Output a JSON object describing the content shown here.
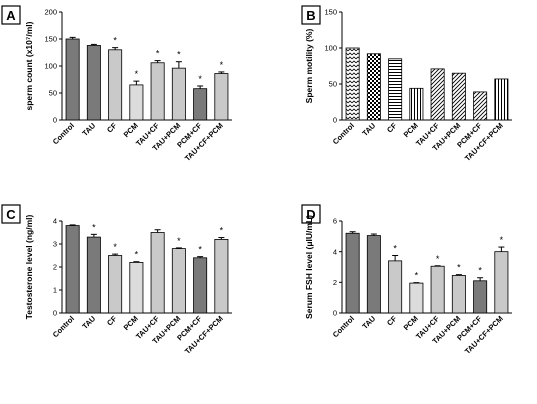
{
  "categories": [
    "Control",
    "TAU",
    "CF",
    "PCM",
    "TAU+CF",
    "TAU+PCM",
    "PCM+CF",
    "TAU+CF+PCM"
  ],
  "colors": {
    "dark": "#7a7a7a",
    "mid": "#a6a6a6",
    "light": "#c9c9c9",
    "lighter": "#dcdcdc",
    "outline": "#000000"
  },
  "chart_data": [
    {
      "panel": "A",
      "type": "bar",
      "ylabel": "sperm count (x10⁷/ml)",
      "ylim": [
        0,
        200
      ],
      "yticks": [
        0,
        50,
        100,
        150,
        200
      ],
      "values": [
        150,
        138,
        130,
        65,
        106,
        96,
        58,
        86
      ],
      "errors": [
        3,
        2,
        4,
        7,
        4,
        12,
        5,
        3
      ],
      "significant": [
        false,
        false,
        true,
        true,
        true,
        true,
        true,
        true
      ],
      "fills": [
        "dark",
        "dark",
        "light",
        "lighter",
        "light",
        "light",
        "dark",
        "light"
      ]
    },
    {
      "panel": "B",
      "type": "bar",
      "ylabel": "Sperm motility (%)",
      "ylim": [
        0,
        150
      ],
      "yticks": [
        0,
        50,
        100,
        150
      ],
      "values": [
        100,
        92,
        85,
        44,
        71,
        65,
        39,
        57
      ],
      "errors": [
        0,
        0,
        0,
        0,
        0,
        0,
        0,
        0
      ],
      "significant": [
        false,
        false,
        false,
        false,
        false,
        false,
        false,
        false
      ],
      "patterns": [
        "zigzag",
        "checker",
        "hstripes",
        "vstripes",
        "diag",
        "diag",
        "diag",
        "vstripes"
      ]
    },
    {
      "panel": "C",
      "type": "bar",
      "ylabel": "Testosterone level (ng/ml)",
      "ylim": [
        0,
        4
      ],
      "yticks": [
        0,
        1,
        2,
        3,
        4
      ],
      "values": [
        3.8,
        3.3,
        2.5,
        2.2,
        3.5,
        2.8,
        2.4,
        3.2
      ],
      "errors": [
        0.03,
        0.12,
        0.06,
        0.03,
        0.12,
        0.03,
        0.05,
        0.08
      ],
      "significant": [
        false,
        true,
        true,
        true,
        false,
        true,
        true,
        true
      ],
      "fills": [
        "dark",
        "dark",
        "light",
        "lighter",
        "light",
        "light",
        "dark",
        "light"
      ]
    },
    {
      "panel": "D",
      "type": "bar",
      "ylabel": "Serum FSH level (μIU/mL)",
      "ylim": [
        0,
        6
      ],
      "yticks": [
        0,
        2,
        4,
        6
      ],
      "values": [
        5.2,
        5.05,
        3.4,
        1.95,
        3.05,
        2.45,
        2.1,
        4.0
      ],
      "errors": [
        0.1,
        0.1,
        0.35,
        0.03,
        0.03,
        0.05,
        0.2,
        0.3
      ],
      "significant": [
        false,
        false,
        true,
        true,
        true,
        true,
        true,
        true
      ],
      "fills": [
        "dark",
        "dark",
        "light",
        "lighter",
        "light",
        "light",
        "dark",
        "light"
      ]
    }
  ]
}
